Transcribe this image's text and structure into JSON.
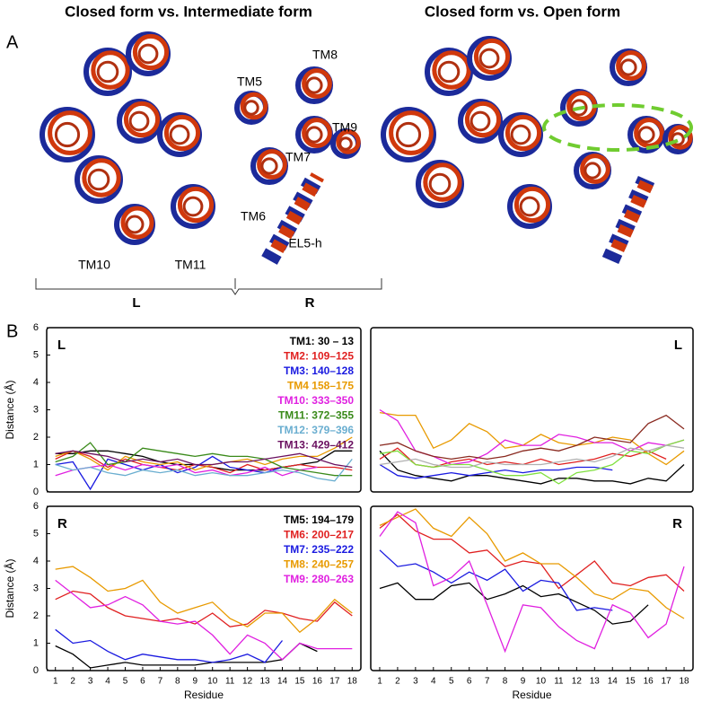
{
  "figure": {
    "panel_a_label": "A",
    "panel_b_label": "B",
    "titles": [
      "Closed form vs. Intermediate form",
      "Closed form vs. Open form"
    ],
    "structure_labels": [
      "TM5",
      "TM8",
      "TM9",
      "TM7",
      "TM6",
      "EL5-h",
      "TM10",
      "TM11"
    ],
    "group_labels": [
      "L",
      "R"
    ]
  },
  "chart_data": [
    {
      "type": "line",
      "label": "L",
      "y_label": "Distance (Å)",
      "legend": true,
      "xlim": [
        0.5,
        18.5
      ],
      "ylim": [
        0,
        6
      ],
      "yticks": [
        0,
        1,
        2,
        3,
        4,
        5,
        6
      ],
      "series": [
        {
          "name": "TM1: 30 – 13",
          "color": "#000000",
          "values": [
            1.4,
            1.4,
            1.5,
            1.5,
            1.4,
            1.3,
            1.1,
            1.0,
            1.0,
            0.9,
            0.8,
            0.8,
            0.8,
            0.9,
            1.0,
            1.1,
            1.5,
            1.5
          ]
        },
        {
          "name": "TM2: 109–125",
          "color": "#e02020",
          "values": [
            1.2,
            1.5,
            1.3,
            0.9,
            1.2,
            1.0,
            0.9,
            0.8,
            1.0,
            0.9,
            0.7,
            1.0,
            0.8,
            0.9,
            1.0,
            0.9,
            0.9,
            0.8
          ]
        },
        {
          "name": "TM3: 140–128",
          "color": "#1a1ae0",
          "values": [
            1.0,
            1.1,
            0.1,
            1.2,
            1.0,
            0.8,
            1.0,
            0.7,
            0.9,
            1.3,
            0.9,
            0.8,
            0.7,
            0.9,
            null,
            null,
            null,
            null
          ]
        },
        {
          "name": "TM4 158–175",
          "color": "#e89a00",
          "values": [
            1.3,
            1.5,
            1.2,
            0.8,
            1.3,
            1.1,
            1.0,
            1.1,
            0.8,
            1.0,
            1.1,
            1.2,
            1.0,
            1.2,
            1.3,
            1.3,
            1.6,
            2.0
          ]
        },
        {
          "name": "TM10: 333–350",
          "color": "#e020e0",
          "values": [
            0.6,
            0.8,
            0.9,
            1.0,
            0.8,
            1.0,
            0.9,
            1.0,
            0.7,
            0.8,
            0.6,
            0.7,
            0.9,
            0.6,
            0.8,
            0.9,
            null,
            null
          ]
        },
        {
          "name": "TM11: 372–355",
          "color": "#3a8a1a",
          "values": [
            1.1,
            1.3,
            1.8,
            1.0,
            1.1,
            1.6,
            1.5,
            1.4,
            1.3,
            1.4,
            1.3,
            1.3,
            1.2,
            0.9,
            0.8,
            0.7,
            0.6,
            0.6
          ]
        },
        {
          "name": "TM12: 379–396",
          "color": "#6aaed0",
          "values": [
            1.0,
            0.8,
            0.9,
            0.7,
            0.6,
            0.8,
            0.7,
            0.8,
            0.6,
            0.7,
            0.6,
            0.6,
            0.7,
            0.8,
            0.7,
            0.5,
            0.4,
            1.2
          ]
        },
        {
          "name": "TM13: 429–412",
          "color": "#6a1060",
          "values": [
            1.4,
            1.5,
            1.4,
            1.3,
            1.1,
            1.2,
            1.1,
            1.2,
            1.0,
            1.0,
            1.1,
            1.1,
            1.2,
            1.3,
            1.4,
            1.2,
            1.0,
            0.9
          ]
        }
      ]
    },
    {
      "type": "line",
      "label": "L",
      "legend": false,
      "xlim": [
        0.5,
        18.5
      ],
      "ylim": [
        0,
        6
      ],
      "series": [
        {
          "color": "#000000",
          "values": [
            1.5,
            0.8,
            0.6,
            0.5,
            0.4,
            0.6,
            0.6,
            0.5,
            0.4,
            0.3,
            0.5,
            0.5,
            0.4,
            0.4,
            0.3,
            0.5,
            0.4,
            1.0
          ]
        },
        {
          "color": "#e02020",
          "values": [
            1.2,
            1.6,
            1.0,
            0.9,
            1.1,
            1.2,
            1.0,
            1.1,
            1.0,
            1.2,
            1.0,
            1.1,
            1.2,
            1.4,
            1.3,
            1.5,
            1.2,
            null
          ]
        },
        {
          "color": "#1a1ae0",
          "values": [
            1.0,
            0.6,
            0.5,
            0.6,
            0.7,
            0.6,
            0.7,
            0.8,
            0.7,
            0.8,
            0.8,
            0.9,
            0.9,
            0.8,
            null,
            null,
            null,
            null
          ]
        },
        {
          "color": "#e89a00",
          "values": [
            2.9,
            2.8,
            2.8,
            1.6,
            1.9,
            2.5,
            2.2,
            1.6,
            1.7,
            2.1,
            1.8,
            1.7,
            1.8,
            2.0,
            1.9,
            1.4,
            1.0,
            1.5
          ]
        },
        {
          "color": "#e020e0",
          "values": [
            3.0,
            2.6,
            1.5,
            1.3,
            1.0,
            1.1,
            1.4,
            1.9,
            1.7,
            1.7,
            2.1,
            2.0,
            1.8,
            1.8,
            1.5,
            1.8,
            1.7,
            1.9
          ]
        },
        {
          "color": "#80e040",
          "values": [
            1.4,
            1.5,
            1.0,
            0.9,
            1.0,
            1.0,
            0.8,
            0.6,
            0.6,
            0.7,
            0.3,
            0.7,
            0.8,
            1.0,
            1.5,
            1.4,
            1.7,
            1.9
          ]
        },
        {
          "color": "#b0b0b0",
          "values": [
            1.0,
            1.1,
            1.2,
            1.0,
            0.9,
            0.9,
            1.1,
            1.0,
            1.0,
            1.0,
            1.1,
            1.2,
            1.1,
            1.3,
            1.6,
            1.5,
            1.7,
            1.6
          ]
        },
        {
          "color": "#8a2a20",
          "values": [
            1.7,
            1.8,
            1.5,
            1.3,
            1.2,
            1.3,
            1.2,
            1.3,
            1.5,
            1.6,
            1.5,
            1.7,
            2.0,
            1.9,
            1.8,
            2.5,
            2.8,
            2.3
          ]
        }
      ]
    },
    {
      "type": "line",
      "label": "R",
      "y_label": "Distance (Å)",
      "x_label": "Residue",
      "legend": true,
      "xlim": [
        0.5,
        18.5
      ],
      "xticks": [
        1,
        2,
        3,
        4,
        5,
        6,
        7,
        8,
        9,
        10,
        11,
        12,
        13,
        14,
        15,
        16,
        17,
        18
      ],
      "ylim": [
        0,
        6
      ],
      "yticks": [
        0,
        1,
        2,
        3,
        4,
        5,
        6
      ],
      "series": [
        {
          "name": "TM5: 194–179",
          "color": "#000000",
          "values": [
            0.9,
            0.6,
            0.1,
            0.2,
            0.3,
            0.2,
            0.2,
            0.2,
            0.2,
            0.3,
            0.3,
            0.3,
            0.3,
            0.4,
            1.0,
            0.7,
            null,
            null
          ]
        },
        {
          "name": "TM6: 200–217",
          "color": "#e02020",
          "values": [
            2.6,
            2.9,
            2.8,
            2.3,
            2.0,
            1.9,
            1.8,
            1.9,
            1.7,
            2.1,
            1.6,
            1.7,
            2.2,
            2.1,
            1.9,
            1.8,
            2.5,
            2.0
          ]
        },
        {
          "name": "TM7: 235–222",
          "color": "#1a1ae0",
          "values": [
            1.5,
            1.0,
            1.1,
            0.7,
            0.4,
            0.6,
            0.5,
            0.4,
            0.4,
            0.3,
            0.4,
            0.6,
            0.3,
            1.1,
            null,
            null,
            null,
            null
          ]
        },
        {
          "name": "TM8: 240–257",
          "color": "#e89a00",
          "values": [
            3.7,
            3.8,
            3.4,
            2.9,
            3.0,
            3.3,
            2.5,
            2.1,
            2.3,
            2.5,
            1.9,
            1.6,
            2.1,
            2.1,
            1.4,
            1.9,
            2.6,
            2.1
          ]
        },
        {
          "name": "TM9: 280–263",
          "color": "#e020e0",
          "values": [
            3.3,
            2.8,
            2.3,
            2.4,
            2.7,
            2.4,
            1.8,
            1.7,
            1.8,
            1.3,
            0.6,
            1.3,
            1.0,
            0.4,
            1.0,
            0.8,
            0.8,
            0.8
          ]
        }
      ]
    },
    {
      "type": "line",
      "label": "R",
      "x_label": "Residue",
      "legend": false,
      "xlim": [
        0.5,
        18.5
      ],
      "xticks": [
        1,
        2,
        3,
        4,
        5,
        6,
        7,
        8,
        9,
        10,
        11,
        12,
        13,
        14,
        15,
        16,
        17,
        18
      ],
      "ylim": [
        0,
        6
      ],
      "series": [
        {
          "color": "#000000",
          "values": [
            3.0,
            3.2,
            2.6,
            2.6,
            3.1,
            3.2,
            2.6,
            2.8,
            3.1,
            2.7,
            2.8,
            2.5,
            2.2,
            1.7,
            1.8,
            2.4,
            null,
            null
          ]
        },
        {
          "color": "#e02020",
          "values": [
            5.2,
            5.7,
            5.1,
            4.8,
            4.8,
            4.3,
            4.4,
            3.8,
            4.0,
            3.9,
            3.0,
            3.5,
            4.0,
            3.2,
            3.1,
            3.4,
            3.5,
            2.9
          ]
        },
        {
          "color": "#1a1ae0",
          "values": [
            4.4,
            3.8,
            3.9,
            3.6,
            3.2,
            3.6,
            3.3,
            3.7,
            2.9,
            3.3,
            3.2,
            2.2,
            2.3,
            2.2,
            null,
            null,
            null,
            null
          ]
        },
        {
          "color": "#e89a00",
          "values": [
            5.3,
            5.6,
            5.9,
            5.2,
            4.9,
            5.6,
            5.0,
            4.0,
            4.3,
            3.9,
            3.9,
            3.4,
            2.8,
            2.6,
            3.0,
            2.9,
            2.3,
            1.9
          ]
        },
        {
          "color": "#e020e0",
          "values": [
            4.9,
            5.8,
            5.4,
            3.1,
            3.4,
            4.0,
            2.4,
            0.7,
            2.4,
            2.3,
            1.6,
            1.1,
            0.8,
            2.4,
            2.1,
            1.2,
            1.7,
            3.8
          ]
        }
      ]
    }
  ]
}
